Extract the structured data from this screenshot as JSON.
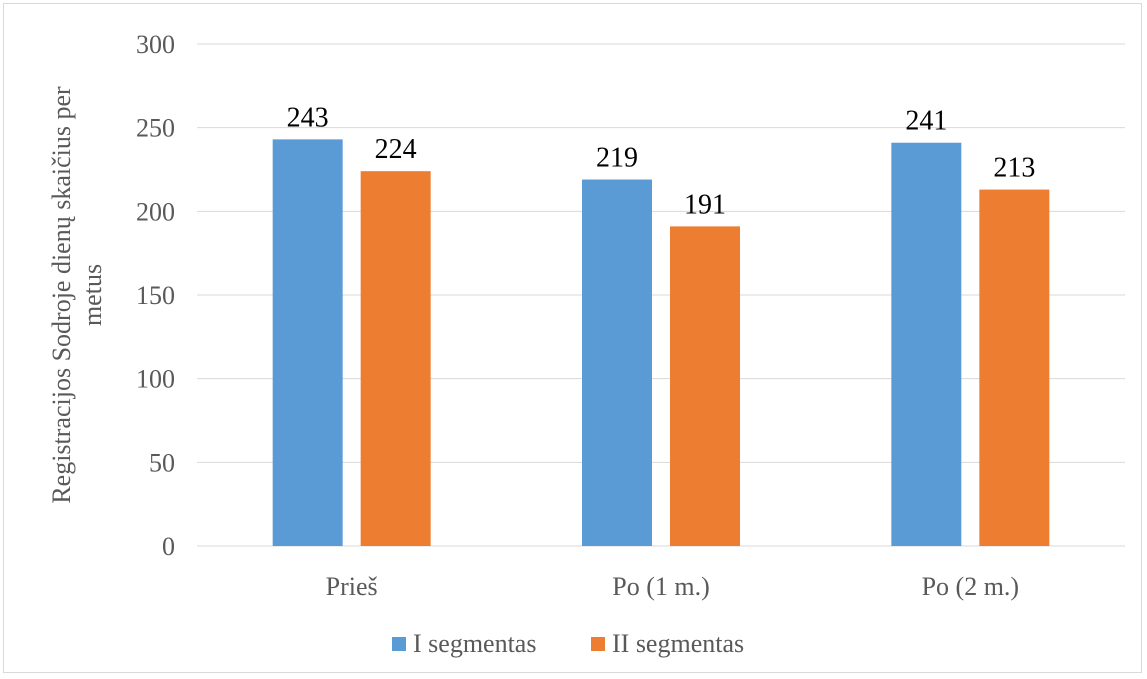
{
  "chart_data": {
    "type": "bar",
    "categories": [
      "Prieš",
      "Po (1 m.)",
      "Po (2 m.)"
    ],
    "series": [
      {
        "name": "I segmentas",
        "values": [
          243,
          219,
          241
        ],
        "color": "#5b9bd5"
      },
      {
        "name": "II segmentas",
        "values": [
          224,
          191,
          213
        ],
        "color": "#ed7d31"
      }
    ],
    "ylabel_lines": [
      "Registracijos Sodroje dienų skaičius per",
      "metus"
    ],
    "ylim": [
      0,
      300
    ],
    "yticks": [
      0,
      50,
      100,
      150,
      200,
      250,
      300
    ],
    "grid": true,
    "legend_position": "bottom"
  }
}
